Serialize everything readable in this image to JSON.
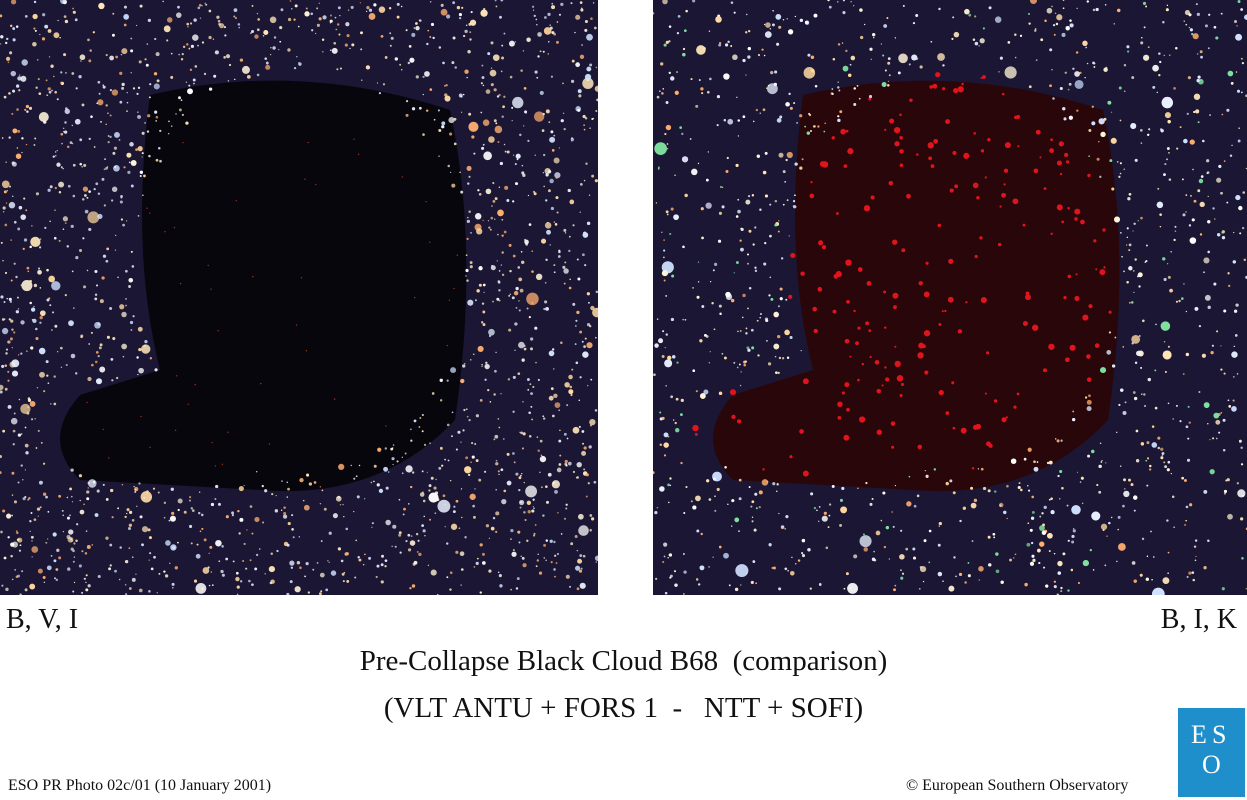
{
  "panels": [
    {
      "label": "B, V, I"
    },
    {
      "label": "B, I, K"
    }
  ],
  "title": "Pre-Collapse Black Cloud B68  (comparison)",
  "subtitle": "(VLT ANTU + FORS 1  -   NTT + SOFI)",
  "footer": {
    "credit": "ESO PR Photo 02c/01 (10 January 2001)",
    "copyright": "© European Southern Observatory"
  },
  "logo": {
    "letters": [
      "E",
      "S",
      "O"
    ]
  }
}
